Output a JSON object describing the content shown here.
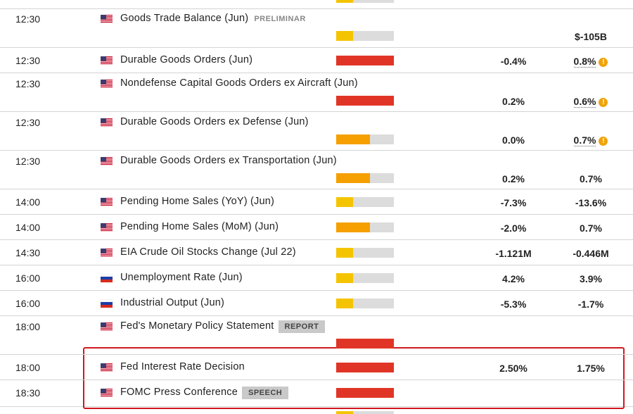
{
  "calendar": {
    "rows": [
      {
        "time": "12:30",
        "country": "us",
        "event": "Goods Trade Balance (Jun)",
        "tag": "PRELIMINAR",
        "tag_style": "plain",
        "impact": "low",
        "lines": 2,
        "previous": "$-105B"
      },
      {
        "time": "12:30",
        "country": "us",
        "event": "Durable Goods Orders (Jun)",
        "impact": "high",
        "lines": 1,
        "actual": "-0.4%",
        "previous": "0.8%",
        "revised": true
      },
      {
        "time": "12:30",
        "country": "us",
        "event": "Nondefense Capital Goods Orders ex Aircraft (Jun)",
        "impact": "high",
        "lines": 2,
        "actual": "0.2%",
        "previous": "0.6%",
        "revised": true
      },
      {
        "time": "12:30",
        "country": "us",
        "event": "Durable Goods Orders ex Defense (Jun)",
        "impact": "medium",
        "lines": 2,
        "actual": "0.0%",
        "previous": "0.7%",
        "revised": true
      },
      {
        "time": "12:30",
        "country": "us",
        "event": "Durable Goods Orders ex Transportation (Jun)",
        "impact": "medium",
        "lines": 2,
        "actual": "0.2%",
        "previous": "0.7%"
      },
      {
        "time": "14:00",
        "country": "us",
        "event": "Pending Home Sales (YoY) (Jun)",
        "impact": "low",
        "lines": 1,
        "actual": "-7.3%",
        "previous": "-13.6%"
      },
      {
        "time": "14:00",
        "country": "us",
        "event": "Pending Home Sales (MoM) (Jun)",
        "impact": "medium",
        "lines": 1,
        "actual": "-2.0%",
        "previous": "0.7%"
      },
      {
        "time": "14:30",
        "country": "us",
        "event": "EIA Crude Oil Stocks Change (Jul 22)",
        "impact": "low",
        "lines": 1,
        "actual": "-1.121M",
        "previous": "-0.446M"
      },
      {
        "time": "16:00",
        "country": "ru",
        "event": "Unemployment Rate (Jun)",
        "impact": "low",
        "lines": 1,
        "actual": "4.2%",
        "previous": "3.9%"
      },
      {
        "time": "16:00",
        "country": "ru",
        "event": "Industrial Output (Jun)",
        "impact": "low",
        "lines": 1,
        "actual": "-5.3%",
        "previous": "-1.7%"
      },
      {
        "time": "18:00",
        "country": "us",
        "event": "Fed's Monetary Policy Statement",
        "tag": "REPORT",
        "tag_style": "box",
        "impact": "high",
        "lines": 2
      },
      {
        "time": "18:00",
        "country": "us",
        "event": "Fed Interest Rate Decision",
        "impact": "high",
        "lines": 1,
        "actual": "2.50%",
        "previous": "1.75%",
        "highlight": true
      },
      {
        "time": "18:30",
        "country": "us",
        "event": "FOMC Press Conference",
        "tag": "SPEECH",
        "tag_style": "box",
        "impact": "high",
        "lines": 1,
        "highlight": true
      }
    ]
  }
}
